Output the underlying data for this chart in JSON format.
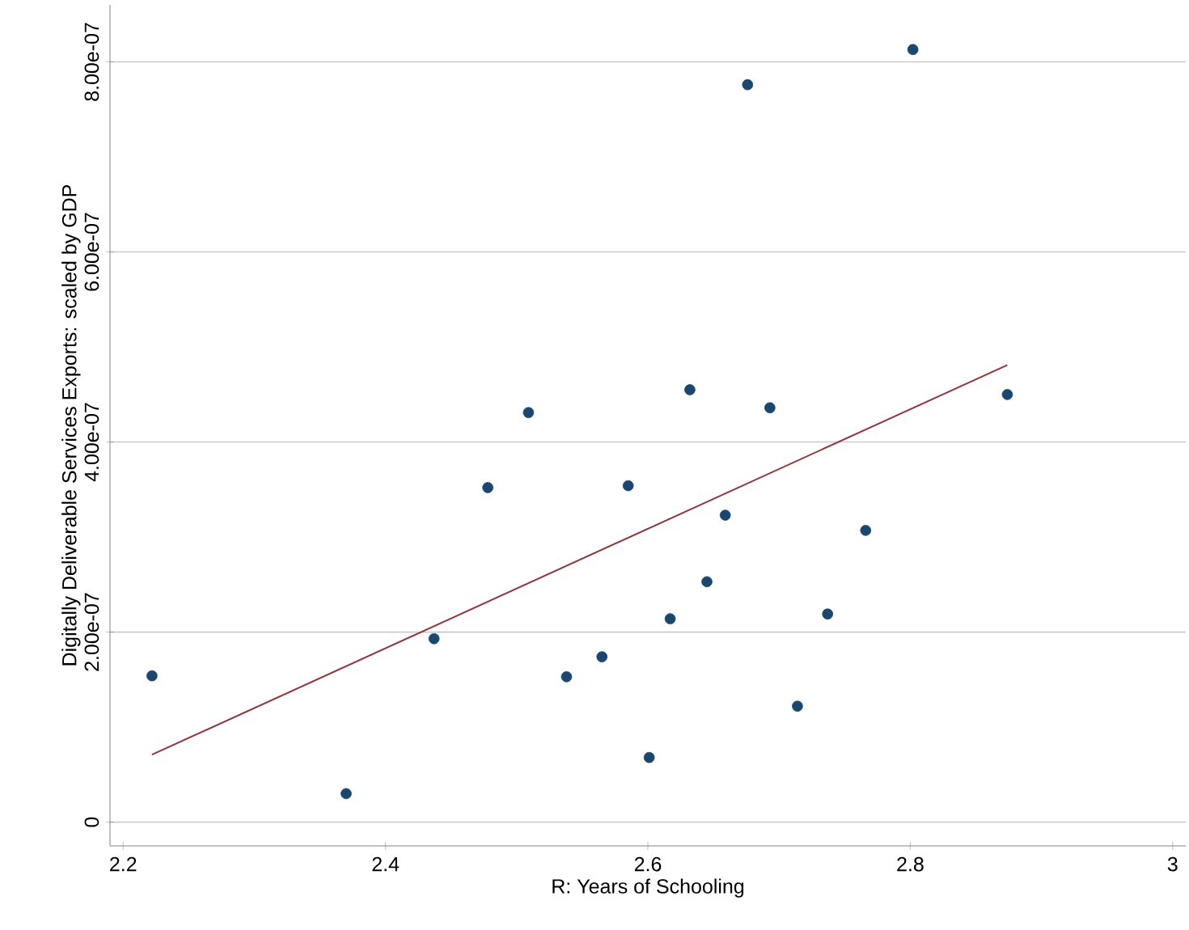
{
  "chart_data": {
    "type": "scatter",
    "xlabel": "R: Years of Schooling",
    "ylabel": "Digitally Deliverable Services Exports: scaled by GDP",
    "xlim": [
      2.19,
      3.01
    ],
    "ylim": [
      -2.5e-08,
      8.6e-07
    ],
    "xticks": [
      2.2,
      2.4,
      2.6,
      2.8,
      3
    ],
    "yticks": [
      0,
      {
        "value": 2e-07,
        "label": "2.00e-07"
      },
      {
        "value": 4e-07,
        "label": "4.00e-07"
      },
      {
        "value": 6e-07,
        "label": "6.00e-07"
      },
      {
        "value": 8e-07,
        "label": "8.00e-07"
      }
    ],
    "grid": "y",
    "marker": "circle",
    "series": [
      {
        "color": "#1a476f",
        "x": [
          2.222,
          2.37,
          2.437,
          2.478,
          2.509,
          2.538,
          2.565,
          2.585,
          2.601,
          2.617,
          2.632,
          2.645,
          2.659,
          2.676,
          2.693,
          2.714,
          2.737,
          2.766,
          2.802,
          2.874
        ],
        "values": [
          1.54e-07,
          3e-08,
          1.93e-07,
          3.52e-07,
          4.31e-07,
          1.53e-07,
          1.74e-07,
          3.54e-07,
          6.8e-08,
          2.14e-07,
          4.55e-07,
          2.53e-07,
          3.23e-07,
          7.76e-07,
          4.36e-07,
          1.22e-07,
          2.19e-07,
          3.07e-07,
          8.13e-07,
          4.5e-07
        ]
      },
      {
        "type": "line",
        "marker": "none",
        "color": "#90353b",
        "x": [
          2.222,
          2.874
        ],
        "values": [
          7.1e-08,
          4.81e-07
        ]
      }
    ]
  }
}
